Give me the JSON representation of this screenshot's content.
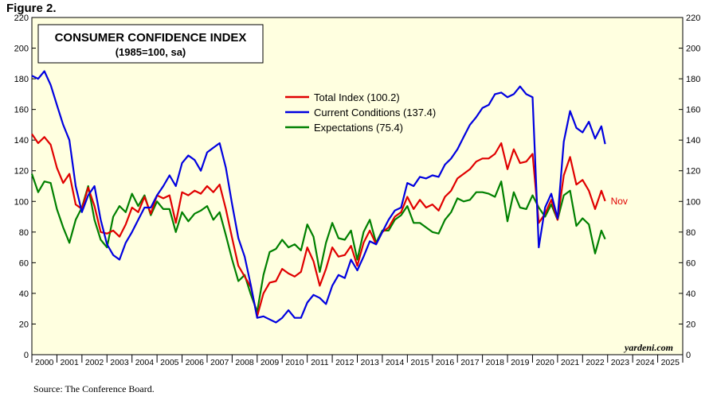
{
  "figure_label": "Figure 2.",
  "source": "Source: The Conference Board.",
  "watermark": "yardeni.com",
  "chart_data": {
    "type": "line",
    "title": "CONSUMER CONFIDENCE INDEX",
    "subtitle": "(1985=100, sa)",
    "ylim": [
      0,
      220
    ],
    "yticks": [
      "0",
      "20",
      "40",
      "60",
      "80",
      "100",
      "120",
      "140",
      "160",
      "180",
      "200",
      "220"
    ],
    "xlim": [
      2000,
      2026
    ],
    "year_labels": [
      "2000",
      "2001",
      "2002",
      "2003",
      "2004",
      "2005",
      "2006",
      "2007",
      "2008",
      "2009",
      "2010",
      "2011",
      "2012",
      "2013",
      "2014",
      "2015",
      "2016",
      "2017",
      "2018",
      "2019",
      "2020",
      "2021",
      "2022",
      "2023",
      "2024",
      "2025"
    ],
    "end_label": "Nov",
    "legend_position": "top-center",
    "grid": false,
    "background": "#ffffe0",
    "series": [
      {
        "name": "Total Index (100.2)",
        "color": "#e00000",
        "points": [
          [
            2000.0,
            144
          ],
          [
            2000.25,
            138
          ],
          [
            2000.5,
            142
          ],
          [
            2000.75,
            137
          ],
          [
            2001.0,
            122
          ],
          [
            2001.25,
            112
          ],
          [
            2001.5,
            118
          ],
          [
            2001.75,
            98
          ],
          [
            2002.0,
            95
          ],
          [
            2002.25,
            109
          ],
          [
            2002.5,
            97
          ],
          [
            2002.75,
            80
          ],
          [
            2003.0,
            79
          ],
          [
            2003.25,
            81
          ],
          [
            2003.5,
            77
          ],
          [
            2003.75,
            85
          ],
          [
            2004.0,
            96
          ],
          [
            2004.25,
            93
          ],
          [
            2004.5,
            103
          ],
          [
            2004.75,
            92
          ],
          [
            2005.0,
            104
          ],
          [
            2005.25,
            102
          ],
          [
            2005.5,
            104
          ],
          [
            2005.75,
            86
          ],
          [
            2006.0,
            106
          ],
          [
            2006.25,
            104
          ],
          [
            2006.5,
            107
          ],
          [
            2006.75,
            105
          ],
          [
            2007.0,
            110
          ],
          [
            2007.25,
            106
          ],
          [
            2007.5,
            111
          ],
          [
            2007.75,
            95
          ],
          [
            2008.0,
            76
          ],
          [
            2008.25,
            58
          ],
          [
            2008.5,
            51
          ],
          [
            2008.75,
            44
          ],
          [
            2009.0,
            25
          ],
          [
            2009.25,
            40
          ],
          [
            2009.5,
            47
          ],
          [
            2009.75,
            48
          ],
          [
            2010.0,
            56
          ],
          [
            2010.25,
            53
          ],
          [
            2010.5,
            51
          ],
          [
            2010.75,
            54
          ],
          [
            2011.0,
            70
          ],
          [
            2011.25,
            61
          ],
          [
            2011.5,
            45
          ],
          [
            2011.75,
            56
          ],
          [
            2012.0,
            70
          ],
          [
            2012.25,
            64
          ],
          [
            2012.5,
            65
          ],
          [
            2012.75,
            71
          ],
          [
            2013.0,
            58
          ],
          [
            2013.25,
            73
          ],
          [
            2013.5,
            81
          ],
          [
            2013.75,
            72
          ],
          [
            2014.0,
            80
          ],
          [
            2014.25,
            83
          ],
          [
            2014.5,
            90
          ],
          [
            2014.75,
            93
          ],
          [
            2015.0,
            103
          ],
          [
            2015.25,
            95
          ],
          [
            2015.5,
            101
          ],
          [
            2015.75,
            96
          ],
          [
            2016.0,
            98
          ],
          [
            2016.25,
            94
          ],
          [
            2016.5,
            103
          ],
          [
            2016.75,
            107
          ],
          [
            2017.0,
            115
          ],
          [
            2017.25,
            118
          ],
          [
            2017.5,
            121
          ],
          [
            2017.75,
            126
          ],
          [
            2018.0,
            128
          ],
          [
            2018.25,
            128
          ],
          [
            2018.5,
            131
          ],
          [
            2018.75,
            138
          ],
          [
            2019.0,
            121
          ],
          [
            2019.25,
            134
          ],
          [
            2019.5,
            125
          ],
          [
            2019.75,
            126
          ],
          [
            2020.0,
            131
          ],
          [
            2020.25,
            86
          ],
          [
            2020.5,
            92
          ],
          [
            2020.75,
            101
          ],
          [
            2021.0,
            88
          ],
          [
            2021.25,
            117
          ],
          [
            2021.5,
            129
          ],
          [
            2021.75,
            111
          ],
          [
            2022.0,
            114
          ],
          [
            2022.25,
            107
          ],
          [
            2022.5,
            95
          ],
          [
            2022.75,
            107
          ],
          [
            2022.9,
            100.2
          ]
        ]
      },
      {
        "name": "Current Conditions (137.4)",
        "color": "#0000e0",
        "points": [
          [
            2000.0,
            182
          ],
          [
            2000.25,
            180
          ],
          [
            2000.5,
            185
          ],
          [
            2000.75,
            176
          ],
          [
            2001.0,
            163
          ],
          [
            2001.25,
            150
          ],
          [
            2001.5,
            140
          ],
          [
            2001.75,
            110
          ],
          [
            2002.0,
            93
          ],
          [
            2002.25,
            104
          ],
          [
            2002.5,
            110
          ],
          [
            2002.75,
            88
          ],
          [
            2003.0,
            72
          ],
          [
            2003.25,
            65
          ],
          [
            2003.5,
            62
          ],
          [
            2003.75,
            73
          ],
          [
            2004.0,
            80
          ],
          [
            2004.25,
            88
          ],
          [
            2004.5,
            96
          ],
          [
            2004.75,
            96
          ],
          [
            2005.0,
            104
          ],
          [
            2005.25,
            110
          ],
          [
            2005.5,
            117
          ],
          [
            2005.75,
            110
          ],
          [
            2006.0,
            125
          ],
          [
            2006.25,
            130
          ],
          [
            2006.5,
            127
          ],
          [
            2006.75,
            120
          ],
          [
            2007.0,
            132
          ],
          [
            2007.25,
            135
          ],
          [
            2007.5,
            138
          ],
          [
            2007.75,
            122
          ],
          [
            2008.0,
            98
          ],
          [
            2008.25,
            76
          ],
          [
            2008.5,
            64
          ],
          [
            2008.75,
            45
          ],
          [
            2009.0,
            24
          ],
          [
            2009.25,
            25
          ],
          [
            2009.5,
            23
          ],
          [
            2009.75,
            21
          ],
          [
            2010.0,
            24
          ],
          [
            2010.25,
            29
          ],
          [
            2010.5,
            24
          ],
          [
            2010.75,
            24
          ],
          [
            2011.0,
            34
          ],
          [
            2011.25,
            39
          ],
          [
            2011.5,
            37
          ],
          [
            2011.75,
            33
          ],
          [
            2012.0,
            45
          ],
          [
            2012.25,
            52
          ],
          [
            2012.5,
            50
          ],
          [
            2012.75,
            62
          ],
          [
            2013.0,
            55
          ],
          [
            2013.25,
            64
          ],
          [
            2013.5,
            74
          ],
          [
            2013.75,
            72
          ],
          [
            2014.0,
            80
          ],
          [
            2014.25,
            88
          ],
          [
            2014.5,
            94
          ],
          [
            2014.75,
            96
          ],
          [
            2015.0,
            112
          ],
          [
            2015.25,
            110
          ],
          [
            2015.5,
            116
          ],
          [
            2015.75,
            115
          ],
          [
            2016.0,
            117
          ],
          [
            2016.25,
            116
          ],
          [
            2016.5,
            124
          ],
          [
            2016.75,
            128
          ],
          [
            2017.0,
            134
          ],
          [
            2017.25,
            142
          ],
          [
            2017.5,
            150
          ],
          [
            2017.75,
            155
          ],
          [
            2018.0,
            161
          ],
          [
            2018.25,
            163
          ],
          [
            2018.5,
            170
          ],
          [
            2018.75,
            171
          ],
          [
            2019.0,
            168
          ],
          [
            2019.25,
            170
          ],
          [
            2019.5,
            175
          ],
          [
            2019.75,
            170
          ],
          [
            2020.0,
            168
          ],
          [
            2020.25,
            70
          ],
          [
            2020.5,
            96
          ],
          [
            2020.75,
            105
          ],
          [
            2021.0,
            89
          ],
          [
            2021.25,
            139
          ],
          [
            2021.5,
            159
          ],
          [
            2021.75,
            148
          ],
          [
            2022.0,
            145
          ],
          [
            2022.25,
            152
          ],
          [
            2022.5,
            141
          ],
          [
            2022.75,
            149
          ],
          [
            2022.9,
            137.4
          ]
        ]
      },
      {
        "name": "Expectations (75.4)",
        "color": "#008000",
        "points": [
          [
            2000.0,
            118
          ],
          [
            2000.25,
            106
          ],
          [
            2000.5,
            113
          ],
          [
            2000.75,
            112
          ],
          [
            2001.0,
            95
          ],
          [
            2001.25,
            83
          ],
          [
            2001.5,
            73
          ],
          [
            2001.75,
            88
          ],
          [
            2002.0,
            96
          ],
          [
            2002.25,
            110
          ],
          [
            2002.5,
            88
          ],
          [
            2002.75,
            75
          ],
          [
            2003.0,
            70
          ],
          [
            2003.25,
            90
          ],
          [
            2003.5,
            97
          ],
          [
            2003.75,
            93
          ],
          [
            2004.0,
            105
          ],
          [
            2004.25,
            97
          ],
          [
            2004.5,
            104
          ],
          [
            2004.75,
            91
          ],
          [
            2005.0,
            100
          ],
          [
            2005.25,
            95
          ],
          [
            2005.5,
            95
          ],
          [
            2005.75,
            80
          ],
          [
            2006.0,
            93
          ],
          [
            2006.25,
            87
          ],
          [
            2006.5,
            92
          ],
          [
            2006.75,
            94
          ],
          [
            2007.0,
            97
          ],
          [
            2007.25,
            88
          ],
          [
            2007.5,
            93
          ],
          [
            2007.75,
            78
          ],
          [
            2008.0,
            62
          ],
          [
            2008.25,
            48
          ],
          [
            2008.5,
            52
          ],
          [
            2008.75,
            39
          ],
          [
            2009.0,
            28
          ],
          [
            2009.25,
            52
          ],
          [
            2009.5,
            67
          ],
          [
            2009.75,
            69
          ],
          [
            2010.0,
            75
          ],
          [
            2010.25,
            70
          ],
          [
            2010.5,
            72
          ],
          [
            2010.75,
            68
          ],
          [
            2011.0,
            85
          ],
          [
            2011.25,
            77
          ],
          [
            2011.5,
            54
          ],
          [
            2011.75,
            73
          ],
          [
            2012.0,
            86
          ],
          [
            2012.25,
            76
          ],
          [
            2012.5,
            75
          ],
          [
            2012.75,
            81
          ],
          [
            2013.0,
            62
          ],
          [
            2013.25,
            80
          ],
          [
            2013.5,
            88
          ],
          [
            2013.75,
            73
          ],
          [
            2014.0,
            81
          ],
          [
            2014.25,
            81
          ],
          [
            2014.5,
            88
          ],
          [
            2014.75,
            91
          ],
          [
            2015.0,
            97
          ],
          [
            2015.25,
            86
          ],
          [
            2015.5,
            86
          ],
          [
            2015.75,
            83
          ],
          [
            2016.0,
            80
          ],
          [
            2016.25,
            79
          ],
          [
            2016.5,
            88
          ],
          [
            2016.75,
            93
          ],
          [
            2017.0,
            102
          ],
          [
            2017.25,
            100
          ],
          [
            2017.5,
            101
          ],
          [
            2017.75,
            106
          ],
          [
            2018.0,
            106
          ],
          [
            2018.25,
            105
          ],
          [
            2018.5,
            103
          ],
          [
            2018.75,
            113
          ],
          [
            2019.0,
            87
          ],
          [
            2019.25,
            106
          ],
          [
            2019.5,
            96
          ],
          [
            2019.75,
            95
          ],
          [
            2020.0,
            104
          ],
          [
            2020.25,
            96
          ],
          [
            2020.5,
            90
          ],
          [
            2020.75,
            98
          ],
          [
            2021.0,
            88
          ],
          [
            2021.25,
            104
          ],
          [
            2021.5,
            107
          ],
          [
            2021.75,
            84
          ],
          [
            2022.0,
            89
          ],
          [
            2022.25,
            85
          ],
          [
            2022.5,
            66
          ],
          [
            2022.75,
            81
          ],
          [
            2022.9,
            75.4
          ]
        ]
      }
    ]
  }
}
